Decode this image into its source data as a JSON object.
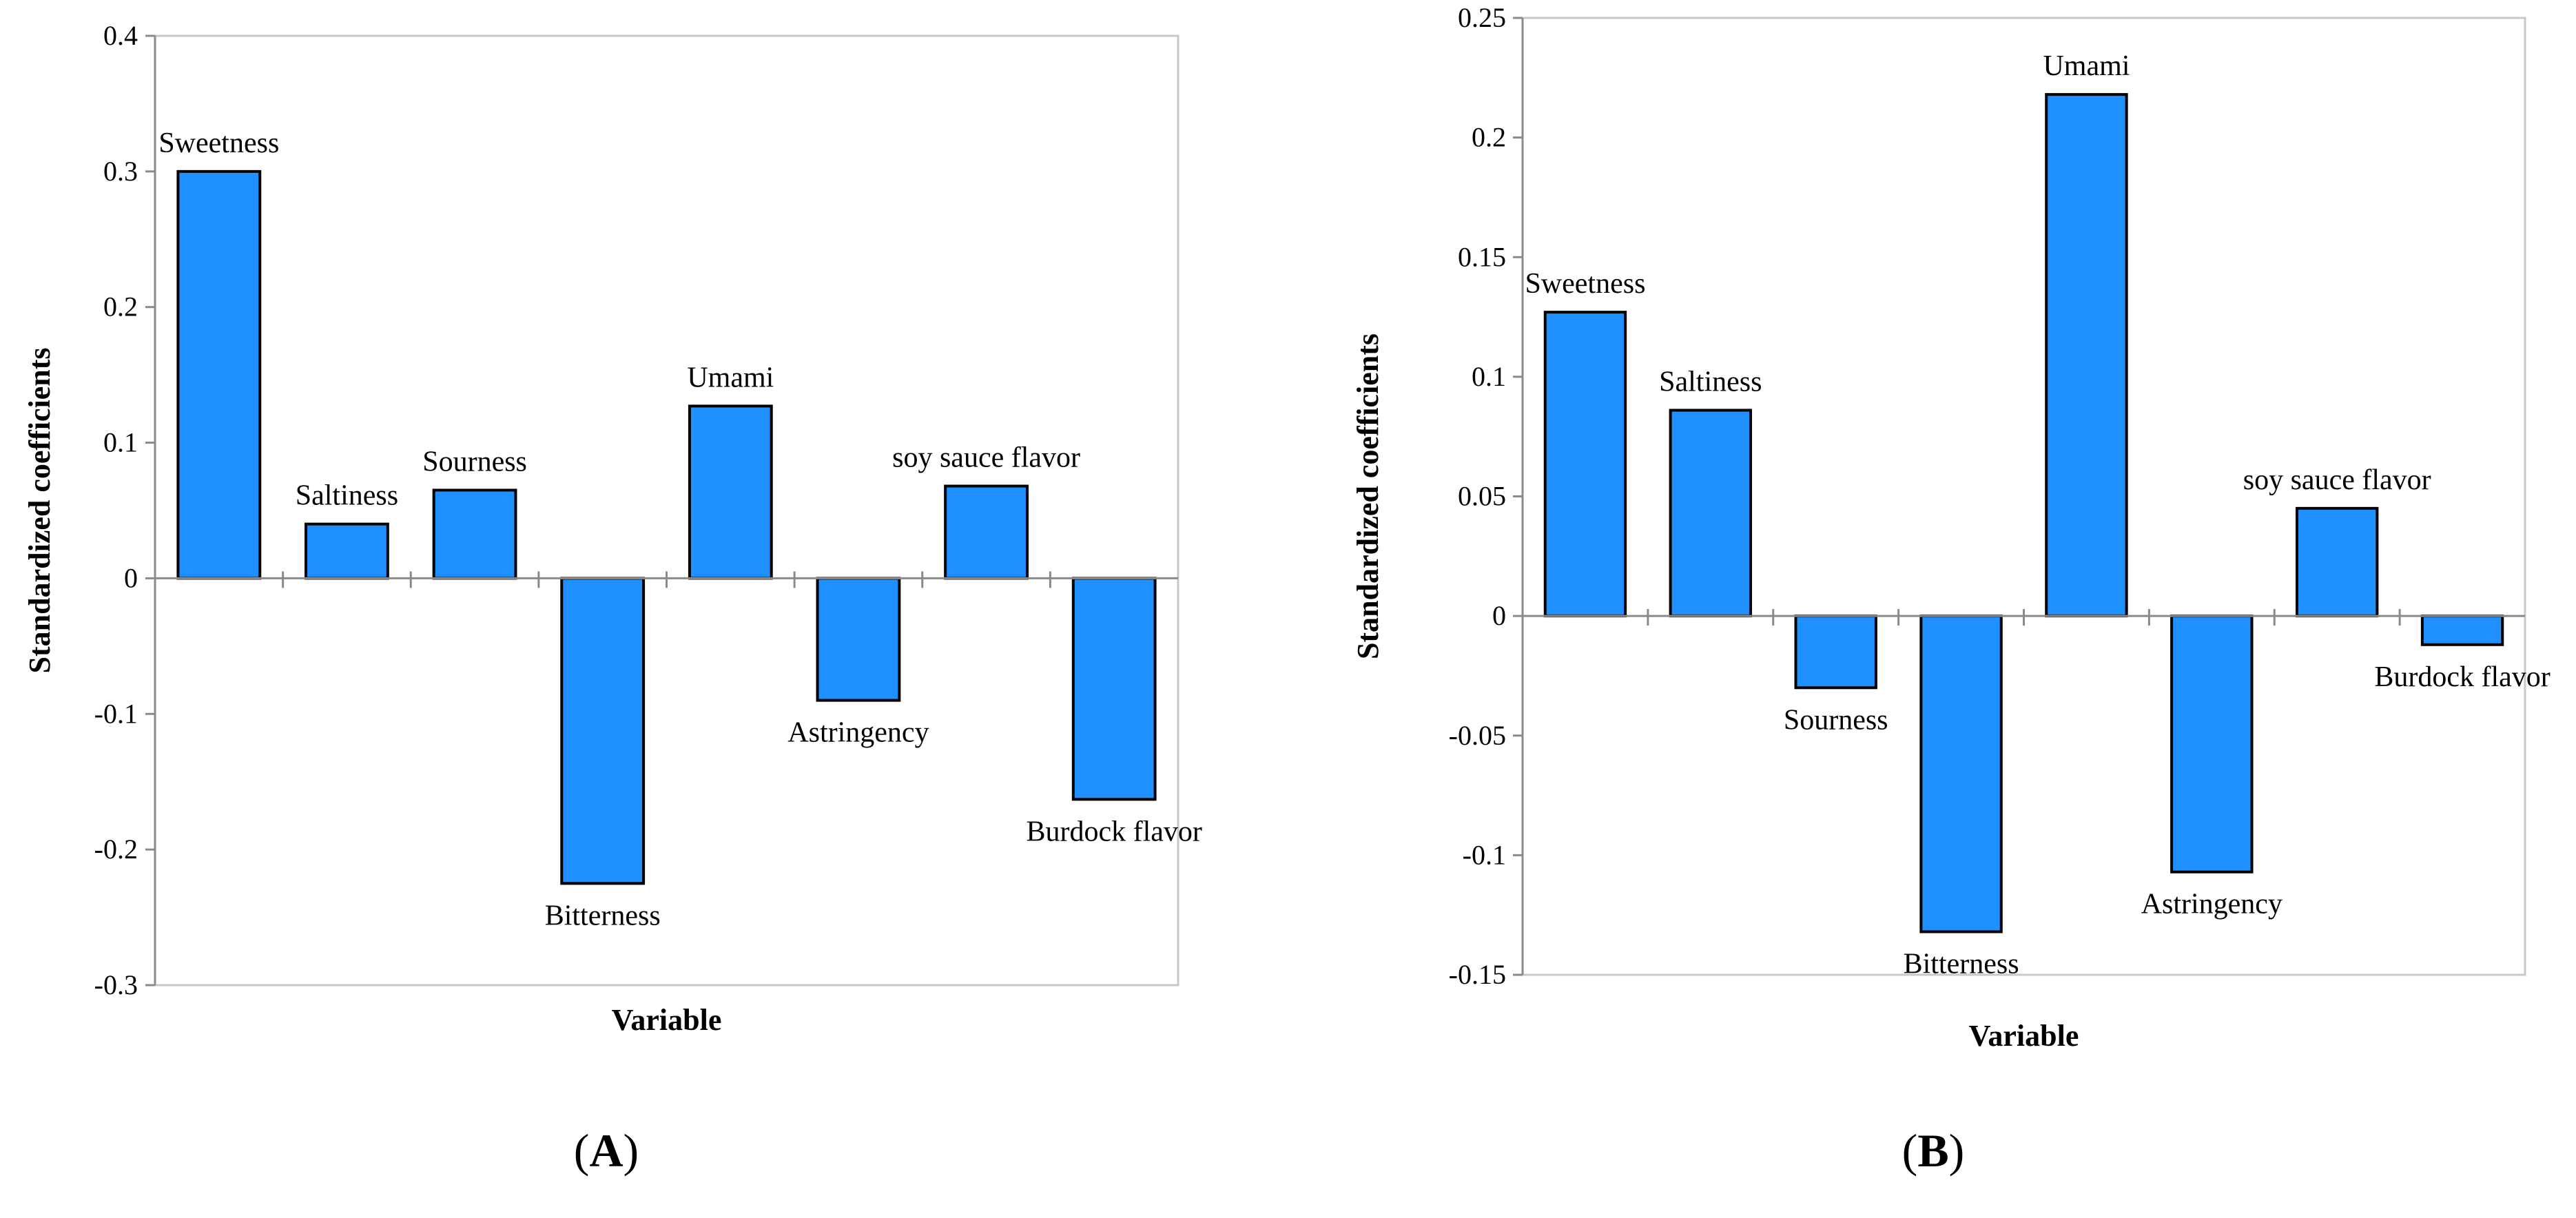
{
  "chart_data": [
    {
      "type": "bar",
      "panel_label": "A",
      "categories": [
        "Sweetness",
        "Saltiness",
        "Sourness",
        "Bitterness",
        "Umami",
        "Astringency",
        "soy sauce flavor",
        "Burdock flavor"
      ],
      "values": [
        0.3,
        0.04,
        0.065,
        -0.225,
        0.127,
        -0.09,
        0.068,
        -0.163
      ],
      "xlabel": "Variable",
      "ylabel": "Standardized coefficients",
      "ylim": [
        -0.3,
        0.4
      ],
      "yticks": [
        "0.4",
        "0.3",
        "0.2",
        "0.1",
        "0",
        "-0.1",
        "-0.2",
        "-0.3"
      ],
      "bar_color": "#1e90ff",
      "grid": false
    },
    {
      "type": "bar",
      "panel_label": "B",
      "categories": [
        "Sweetness",
        "Saltiness",
        "Sourness",
        "Bitterness",
        "Umami",
        "Astringency",
        "soy sauce flavor",
        "Burdock flavor"
      ],
      "values": [
        0.127,
        0.086,
        -0.03,
        -0.132,
        0.218,
        -0.107,
        0.045,
        -0.012
      ],
      "xlabel": "Variable",
      "ylabel": "Standardized coefficients",
      "ylim": [
        -0.15,
        0.25
      ],
      "yticks": [
        "0.25",
        "0.2",
        "0.15",
        "0.1",
        "0.05",
        "0",
        "-0.05",
        "-0.1",
        "-0.15"
      ],
      "bar_color": "#1e90ff",
      "grid": false
    }
  ]
}
